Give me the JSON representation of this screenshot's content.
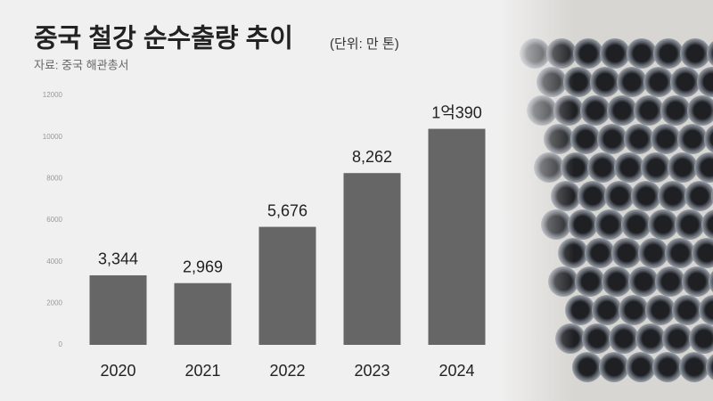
{
  "chart_data": {
    "type": "bar",
    "title": "중국 철강 순수출량 추이",
    "subtitle": "(단위: 만 톤)",
    "source": "자료: 중국 해관총서",
    "categories": [
      "2020",
      "2021",
      "2022",
      "2023",
      "2024"
    ],
    "values": [
      3344,
      2969,
      5676,
      8262,
      10390
    ],
    "value_labels": [
      "3,344",
      "2,969",
      "5,676",
      "8,262",
      "1억390"
    ],
    "color": "#666666",
    "ylim": [
      0,
      12000
    ],
    "yticks": [
      0,
      2000,
      4000,
      6000,
      8000,
      10000,
      12000
    ],
    "grid": false
  }
}
